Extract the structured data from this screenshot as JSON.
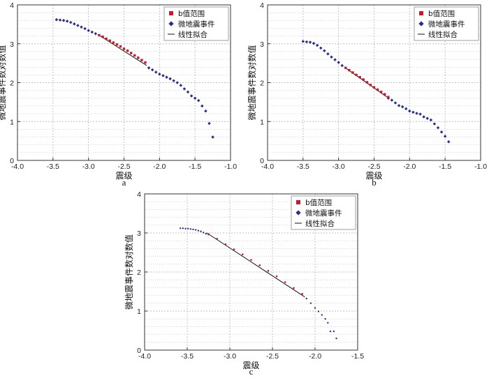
{
  "legend_items": {
    "b_range": "b值范围",
    "events": "微地震事件",
    "fit": "线性拟合"
  },
  "colors": {
    "b_range": "#c8182a",
    "events": "#2a2f8f",
    "fit": "#111111",
    "grid": "#bdbdbd",
    "frame": "#333333"
  },
  "chart_data": [
    {
      "type": "scatter",
      "panel_label": "a",
      "xlabel": "震级",
      "ylabel": "微地震事件数对数值",
      "xlim": [
        -4.0,
        -1.0
      ],
      "ylim": [
        0,
        4
      ],
      "xticks": [
        "-4.0",
        "-3.5",
        "-3.0",
        "-2.5",
        "-2.0",
        "-1.5",
        "-1.0"
      ],
      "yticks": [
        "0",
        "1",
        "2",
        "3",
        "4"
      ],
      "grid": true,
      "legend_position": "top-right",
      "series": [
        {
          "name": "微地震事件",
          "marker": "diamond",
          "x": [
            -3.45,
            -3.4,
            -3.35,
            -3.3,
            -3.25,
            -3.2,
            -3.15,
            -3.1,
            -3.05,
            -3.0,
            -2.95,
            -2.9,
            -2.15,
            -2.1,
            -2.05,
            -2.0,
            -1.95,
            -1.9,
            -1.85,
            -1.8,
            -1.75,
            -1.7,
            -1.65,
            -1.6,
            -1.55,
            -1.5,
            -1.45,
            -1.4,
            -1.35,
            -1.3,
            -1.25
          ],
          "y": [
            3.62,
            3.61,
            3.6,
            3.58,
            3.55,
            3.51,
            3.47,
            3.43,
            3.39,
            3.34,
            3.3,
            3.26,
            2.38,
            2.33,
            2.27,
            2.22,
            2.18,
            2.14,
            2.1,
            2.05,
            2.0,
            1.93,
            1.84,
            1.76,
            1.66,
            1.6,
            1.54,
            1.4,
            1.27,
            0.95,
            0.6
          ]
        },
        {
          "name": "b值范围",
          "marker": "square",
          "x": [
            -2.85,
            -2.8,
            -2.75,
            -2.7,
            -2.65,
            -2.6,
            -2.55,
            -2.5,
            -2.45,
            -2.4,
            -2.35,
            -2.3,
            -2.25,
            -2.2
          ],
          "y": [
            3.22,
            3.18,
            3.13,
            3.08,
            3.03,
            2.98,
            2.93,
            2.87,
            2.82,
            2.76,
            2.7,
            2.64,
            2.58,
            2.52
          ]
        },
        {
          "name": "线性拟合",
          "type": "line",
          "x": [
            -2.87,
            -2.18
          ],
          "y": [
            3.24,
            2.44
          ]
        }
      ]
    },
    {
      "type": "scatter",
      "panel_label": "b",
      "xlabel": "震级",
      "ylabel": "微地震事件数对数值",
      "xlim": [
        -4.0,
        -1.0
      ],
      "ylim": [
        0,
        4
      ],
      "xticks": [
        "-4.0",
        "-3.5",
        "-3.0",
        "-2.5",
        "-2.0",
        "-1.5",
        "-1.0"
      ],
      "yticks": [
        "0",
        "1",
        "2",
        "3",
        "4"
      ],
      "grid": true,
      "legend_position": "top-right",
      "series": [
        {
          "name": "微地震事件",
          "marker": "diamond",
          "x": [
            -3.5,
            -3.45,
            -3.4,
            -3.35,
            -3.3,
            -3.25,
            -3.2,
            -3.15,
            -3.1,
            -3.05,
            -3.0,
            -2.95,
            -2.3,
            -2.25,
            -2.2,
            -2.15,
            -2.1,
            -2.05,
            -2.0,
            -1.95,
            -1.9,
            -1.85,
            -1.8,
            -1.75,
            -1.7,
            -1.65,
            -1.6,
            -1.55,
            -1.5,
            -1.45
          ],
          "y": [
            3.06,
            3.05,
            3.04,
            3.01,
            2.96,
            2.89,
            2.82,
            2.74,
            2.66,
            2.59,
            2.52,
            2.44,
            1.6,
            1.55,
            1.48,
            1.41,
            1.38,
            1.33,
            1.27,
            1.24,
            1.21,
            1.19,
            1.12,
            1.08,
            1.04,
            0.94,
            0.84,
            0.73,
            0.62,
            0.48
          ]
        },
        {
          "name": "b值范围",
          "marker": "square",
          "x": [
            -2.9,
            -2.85,
            -2.8,
            -2.75,
            -2.7,
            -2.65,
            -2.6,
            -2.55,
            -2.5,
            -2.45,
            -2.4,
            -2.35,
            -2.3
          ],
          "y": [
            2.38,
            2.32,
            2.26,
            2.2,
            2.14,
            2.08,
            2.01,
            1.94,
            1.88,
            1.82,
            1.76,
            1.7,
            1.63
          ]
        },
        {
          "name": "线性拟合",
          "type": "line",
          "x": [
            -2.92,
            -2.32
          ],
          "y": [
            2.4,
            1.63
          ]
        }
      ]
    },
    {
      "type": "scatter",
      "panel_label": "c",
      "xlabel": "震级",
      "ylabel": "微地震事件数对数值",
      "xlim": [
        -4.0,
        -1.5
      ],
      "ylim": [
        0,
        4
      ],
      "xticks": [
        "-4.0",
        "-3.5",
        "-3.0",
        "-2.5",
        "-2.0",
        "-1.5"
      ],
      "yticks": [
        "0",
        "1",
        "2",
        "3",
        "4"
      ],
      "grid": true,
      "legend_position": "top-right",
      "series": [
        {
          "name": "微地震事件",
          "marker": "dot",
          "x": [
            -3.58,
            -3.55,
            -3.52,
            -3.49,
            -3.46,
            -3.43,
            -3.4,
            -3.37,
            -3.34,
            -3.31,
            -3.28,
            -3.25,
            -2.1,
            -2.05,
            -2.0,
            -1.96,
            -1.92,
            -1.88,
            -1.85,
            -1.82,
            -1.78,
            -1.75
          ],
          "y": [
            3.12,
            3.12,
            3.11,
            3.11,
            3.1,
            3.09,
            3.08,
            3.06,
            3.04,
            3.01,
            2.98,
            2.96,
            1.32,
            1.2,
            1.08,
            0.99,
            0.9,
            0.8,
            0.7,
            0.48,
            0.48,
            0.3
          ]
        },
        {
          "name": "b值范围",
          "marker": "dot",
          "x": [
            -3.25,
            -3.15,
            -3.05,
            -2.95,
            -2.85,
            -2.75,
            -2.65,
            -2.55,
            -2.45,
            -2.35,
            -2.25,
            -2.15
          ],
          "y": [
            2.97,
            2.85,
            2.71,
            2.58,
            2.45,
            2.31,
            2.17,
            2.03,
            1.89,
            1.74,
            1.59,
            1.44
          ]
        },
        {
          "name": "线性拟合",
          "type": "line",
          "x": [
            -3.27,
            -2.12
          ],
          "y": [
            3.0,
            1.36
          ]
        }
      ]
    }
  ]
}
